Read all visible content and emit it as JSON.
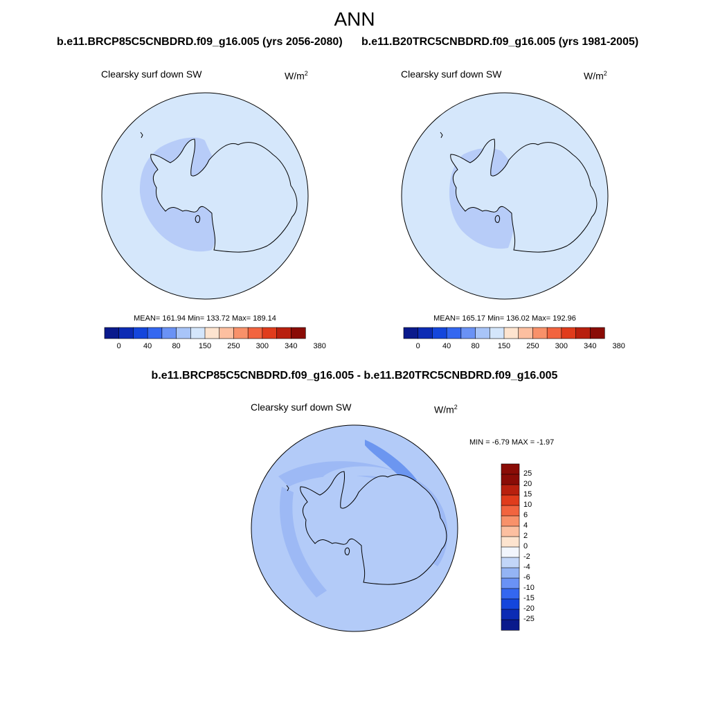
{
  "page_title": "ANN",
  "panels": [
    {
      "case_title": "b.e11.BRCP85C5CNBDRD.f09_g16.005 (yrs 2056-2080)",
      "variable": "Clearsky surf down SW",
      "units": "W/m",
      "units_sup": "2",
      "stats": "MEAN= 161.94  Min= 133.72  Max= 189.14"
    },
    {
      "case_title": "b.e11.B20TRC5CNBDRD.f09_g16.005 (yrs 1981-2005)",
      "variable": "Clearsky surf down SW",
      "units": "W/m",
      "units_sup": "2",
      "stats": "MEAN= 165.17  Min= 136.02  Max= 192.96"
    }
  ],
  "difference": {
    "title": "b.e11.BRCP85C5CNBDRD.f09_g16.005 - b.e11.B20TRC5CNBDRD.f09_g16.005",
    "variable": "Clearsky surf down SW",
    "units": "W/m",
    "units_sup": "2",
    "stats": "MIN =  -6.79 MAX =  -1.97"
  },
  "horizontal_colorbar": {
    "labels": [
      "0",
      "40",
      "80",
      "150",
      "250",
      "300",
      "340",
      "380"
    ],
    "colors": [
      "#0a1a8c",
      "#0c2bb4",
      "#1446dc",
      "#3467f0",
      "#6a92f5",
      "#a8c4f8",
      "#d4e6fb",
      "#fde4cf",
      "#fcbfa0",
      "#f8916a",
      "#f2643f",
      "#e03c1c",
      "#b8200e",
      "#8a0c06"
    ]
  },
  "vertical_colorbar": {
    "labels": [
      "25",
      "20",
      "15",
      "10",
      "6",
      "4",
      "2",
      "0",
      "-2",
      "-4",
      "-6",
      "-10",
      "-15",
      "-20",
      "-25"
    ],
    "colors": [
      "#8a0c06",
      "#b8200e",
      "#e03c1c",
      "#f2643f",
      "#f8916a",
      "#fcbfa0",
      "#fde4cf",
      "#f2f6fd",
      "#c2d6f8",
      "#94b4f4",
      "#6a92f5",
      "#3467f0",
      "#1446dc",
      "#0c2bb4",
      "#0a1a8c"
    ]
  },
  "field_colors": {
    "ocean_light": "#d5e7fb",
    "interior_mid": "#b7ccf8",
    "diff_base": "#b3cbf8",
    "diff_band": "#9db9f5",
    "diff_strong": "#6c96f0"
  }
}
